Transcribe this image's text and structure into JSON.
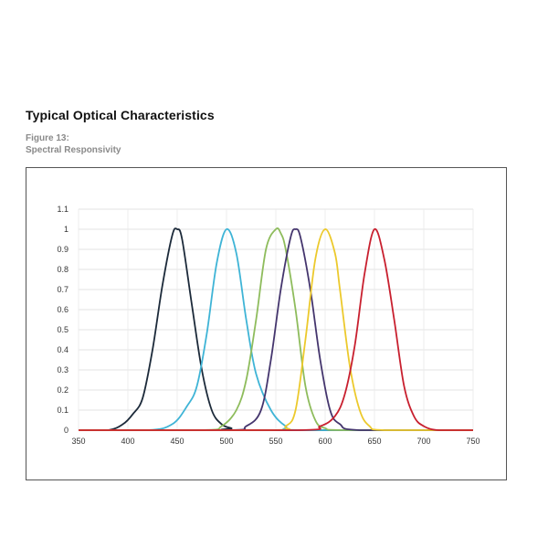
{
  "header": {
    "section_title": "Typical Optical Characteristics",
    "figure_number": "Figure 13:",
    "figure_caption": "Spectral Responsivity"
  },
  "chart_data": {
    "type": "line",
    "xlabel": "",
    "ylabel": "",
    "xlim": [
      350,
      750
    ],
    "ylim": [
      0,
      1.1
    ],
    "grid": true,
    "legend": "none",
    "x_ticks": [
      350,
      400,
      450,
      500,
      550,
      600,
      650,
      700,
      750
    ],
    "y_ticks": [
      0,
      0.1,
      0.2,
      0.3,
      0.4,
      0.5,
      0.6,
      0.7,
      0.8,
      0.9,
      1,
      1.1
    ],
    "series": [
      {
        "color": "#1c2a3a",
        "x": [
          350,
          380,
          395,
          405,
          415,
          425,
          435,
          445,
          450,
          455,
          465,
          475,
          485,
          495,
          505,
          515,
          750
        ],
        "y": [
          0.0,
          0.0,
          0.03,
          0.08,
          0.16,
          0.4,
          0.72,
          0.97,
          1.0,
          0.95,
          0.62,
          0.3,
          0.1,
          0.03,
          0.01,
          0.0,
          0.0
        ]
      },
      {
        "color": "#3fb4d6",
        "x": [
          350,
          420,
          445,
          460,
          470,
          480,
          490,
          500,
          510,
          520,
          530,
          545,
          560,
          575,
          750
        ],
        "y": [
          0.0,
          0.0,
          0.03,
          0.12,
          0.22,
          0.48,
          0.83,
          1.0,
          0.88,
          0.55,
          0.28,
          0.1,
          0.02,
          0.0,
          0.0
        ]
      },
      {
        "color": "#8ebc5c",
        "x": [
          350,
          475,
          495,
          510,
          520,
          530,
          540,
          550,
          555,
          560,
          570,
          580,
          590,
          600,
          620,
          750
        ],
        "y": [
          0.0,
          0.0,
          0.02,
          0.1,
          0.25,
          0.55,
          0.9,
          1.0,
          0.98,
          0.9,
          0.6,
          0.22,
          0.05,
          0.01,
          0.0,
          0.0
        ]
      },
      {
        "color": "#44356d",
        "x": [
          350,
          500,
          520,
          535,
          545,
          555,
          565,
          570,
          575,
          585,
          595,
          605,
          615,
          635,
          750
        ],
        "y": [
          0.0,
          0.0,
          0.02,
          0.1,
          0.35,
          0.7,
          0.96,
          1.0,
          0.96,
          0.7,
          0.35,
          0.1,
          0.03,
          0.0,
          0.0
        ]
      },
      {
        "color": "#ecc92c",
        "x": [
          350,
          545,
          560,
          570,
          580,
          590,
          600,
          610,
          615,
          625,
          635,
          645,
          660,
          750
        ],
        "y": [
          0.0,
          0.0,
          0.02,
          0.1,
          0.45,
          0.85,
          1.0,
          0.88,
          0.7,
          0.32,
          0.1,
          0.02,
          0.0,
          0.0
        ]
      },
      {
        "color": "#c8202f",
        "x": [
          350,
          570,
          595,
          610,
          620,
          630,
          640,
          650,
          660,
          670,
          680,
          690,
          700,
          715,
          750
        ],
        "y": [
          0.0,
          0.0,
          0.02,
          0.07,
          0.18,
          0.42,
          0.78,
          1.0,
          0.85,
          0.55,
          0.22,
          0.07,
          0.02,
          0.0,
          0.0
        ]
      }
    ]
  }
}
